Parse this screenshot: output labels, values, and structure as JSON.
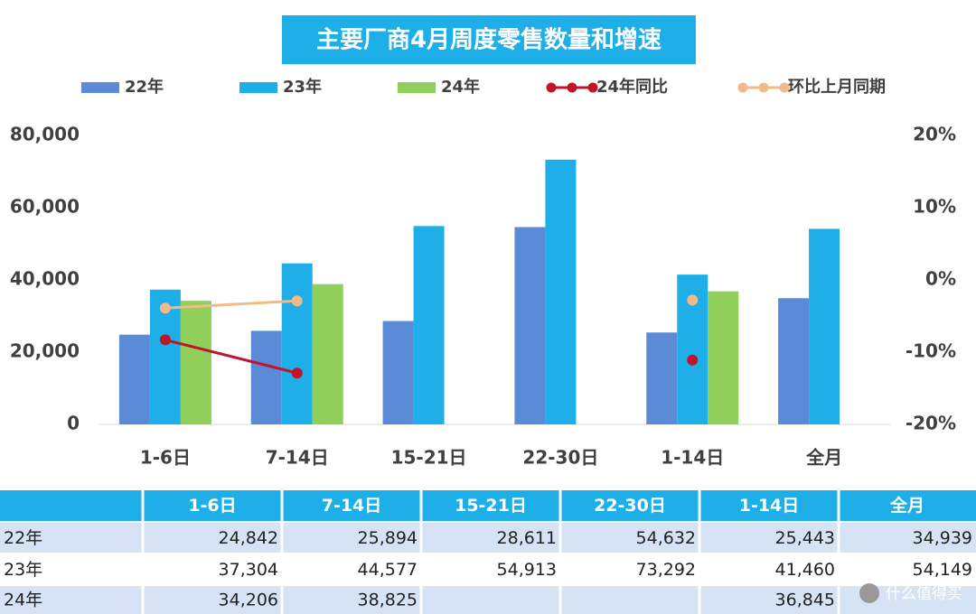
{
  "chart_data": {
    "type": "bar",
    "title": "主要厂商4月周度零售数量和增速",
    "categories": [
      "1-6日",
      "7-14日",
      "15-21日",
      "22-30日",
      "1-14日",
      "全月"
    ],
    "series": [
      {
        "name": "22年",
        "color": "#5b8bd6",
        "type": "bar",
        "values": [
          24842,
          25894,
          28611,
          54632,
          25443,
          34939
        ]
      },
      {
        "name": "23年",
        "color": "#1eaee8",
        "type": "bar",
        "values": [
          37304,
          44577,
          54913,
          73292,
          41460,
          54149
        ]
      },
      {
        "name": "24年",
        "color": "#8fcf5a",
        "type": "bar",
        "values": [
          34206,
          38825,
          null,
          null,
          36845,
          null
        ]
      },
      {
        "name": "24年同比",
        "color": "#c0142a",
        "type": "line",
        "axis": "y2",
        "values": [
          -8.3,
          -12.9,
          null,
          null,
          -11.1,
          null
        ]
      },
      {
        "name": "环比上月同期",
        "color": "#f2b98a",
        "type": "line",
        "axis": "y2",
        "values": [
          -3.9,
          -2.9,
          null,
          null,
          -2.8,
          null
        ]
      }
    ],
    "ylim": [
      0,
      80000
    ],
    "yticks": [
      0,
      {
        "value": 20000,
        "label": "20,000"
      },
      {
        "value": 40000,
        "label": "40,000"
      },
      {
        "value": 60000,
        "label": "60,000"
      },
      {
        "value": 80000,
        "label": "80,000"
      }
    ],
    "y2lim": [
      -20,
      20
    ],
    "y2ticks": [
      {
        "value": -20,
        "label": "-20%"
      },
      {
        "value": -10,
        "label": "-10%"
      },
      {
        "value": 0,
        "label": "0%"
      },
      {
        "value": 10,
        "label": "10%"
      },
      {
        "value": 20,
        "label": "20%"
      }
    ],
    "grid": false,
    "legend": "top"
  },
  "table": {
    "header": [
      "1-6日",
      "7-14日",
      "15-21日",
      "22-30日",
      "1-14日",
      "全月"
    ],
    "rows": [
      [
        "22年",
        "24,842",
        "25,894",
        "28,611",
        "54,632",
        "25,443",
        "34,939"
      ],
      [
        "23年",
        "37,304",
        "44,577",
        "54,913",
        "73,292",
        "41,460",
        "54,149"
      ],
      [
        "24年",
        "34,206",
        "38,825",
        null,
        null,
        "36,845",
        null
      ]
    ]
  },
  "watermark": "什么值得买"
}
